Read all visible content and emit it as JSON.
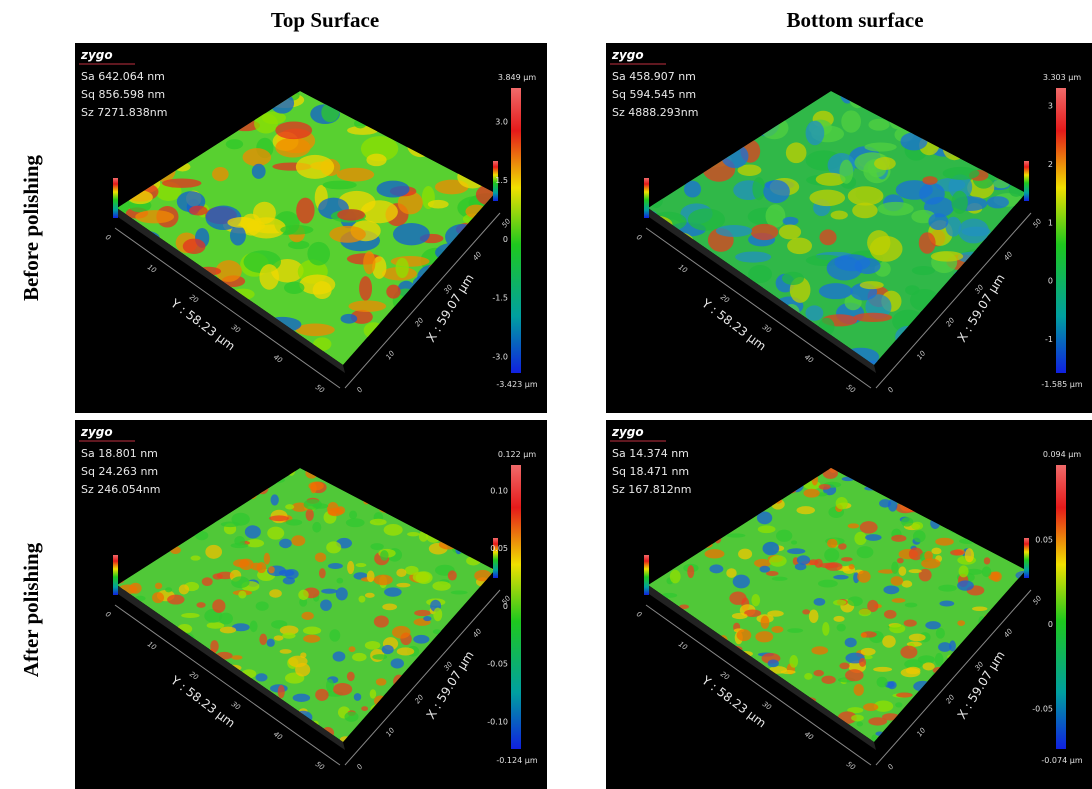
{
  "columns": [
    "Top Surface",
    "Bottom surface"
  ],
  "rows": [
    "Before polishing",
    "After polishing"
  ],
  "panels": [
    {
      "logo": "zygo",
      "stats": [
        "Sa 642.064  nm",
        "Sq 856.598  nm",
        "Sz 7271.838nm"
      ],
      "scale_max": "3.849 µm",
      "scale_min": "-3.423 µm",
      "scale_ticks": [
        "3.0",
        "1.5",
        "0",
        "-1.5",
        "-3.0"
      ],
      "y_axis": "Y : 58.23 µm",
      "x_axis": "X : 59.07 µm",
      "y_ticks": [
        "0",
        "10",
        "20",
        "30",
        "40",
        "50"
      ],
      "x_ticks": [
        "0",
        "10",
        "20",
        "30",
        "40",
        "50"
      ]
    },
    {
      "logo": "zygo",
      "stats": [
        "Sa 458.907  nm",
        "Sq 594.545  nm",
        "Sz 4888.293nm"
      ],
      "scale_max": "3.303 µm",
      "scale_min": "-1.585 µm",
      "scale_ticks": [
        "3",
        "2",
        "1",
        "0",
        "-1"
      ],
      "y_axis": "Y : 58.23 µm",
      "x_axis": "X : 59.07 µm",
      "y_ticks": [
        "0",
        "10",
        "20",
        "30",
        "40",
        "50"
      ],
      "x_ticks": [
        "0",
        "10",
        "20",
        "30",
        "40",
        "50"
      ]
    },
    {
      "logo": "zygo",
      "stats": [
        "Sa 18.801  nm",
        "Sq 24.263  nm",
        "Sz 246.054nm"
      ],
      "scale_max": "0.122 µm",
      "scale_min": "-0.124 µm",
      "scale_ticks": [
        "0.10",
        "0.05",
        "0",
        "-0.05",
        "-0.10"
      ],
      "y_axis": "Y : 58.23 µm",
      "x_axis": "X : 59.07 µm",
      "y_ticks": [
        "0",
        "10",
        "20",
        "30",
        "40",
        "50"
      ],
      "x_ticks": [
        "0",
        "10",
        "20",
        "30",
        "40",
        "50"
      ]
    },
    {
      "logo": "zygo",
      "stats": [
        "Sa 14.374  nm",
        "Sq 18.471  nm",
        "Sz 167.812nm"
      ],
      "scale_max": "0.094 µm",
      "scale_min": "-0.074 µm",
      "scale_ticks": [
        "0.05",
        "0",
        "-0.05"
      ],
      "y_axis": "Y : 58.23 µm",
      "x_axis": "X : 59.07 µm",
      "y_ticks": [
        "0",
        "10",
        "20",
        "30",
        "40",
        "50"
      ],
      "x_ticks": [
        "0",
        "10",
        "20",
        "30",
        "40",
        "50"
      ]
    }
  ]
}
